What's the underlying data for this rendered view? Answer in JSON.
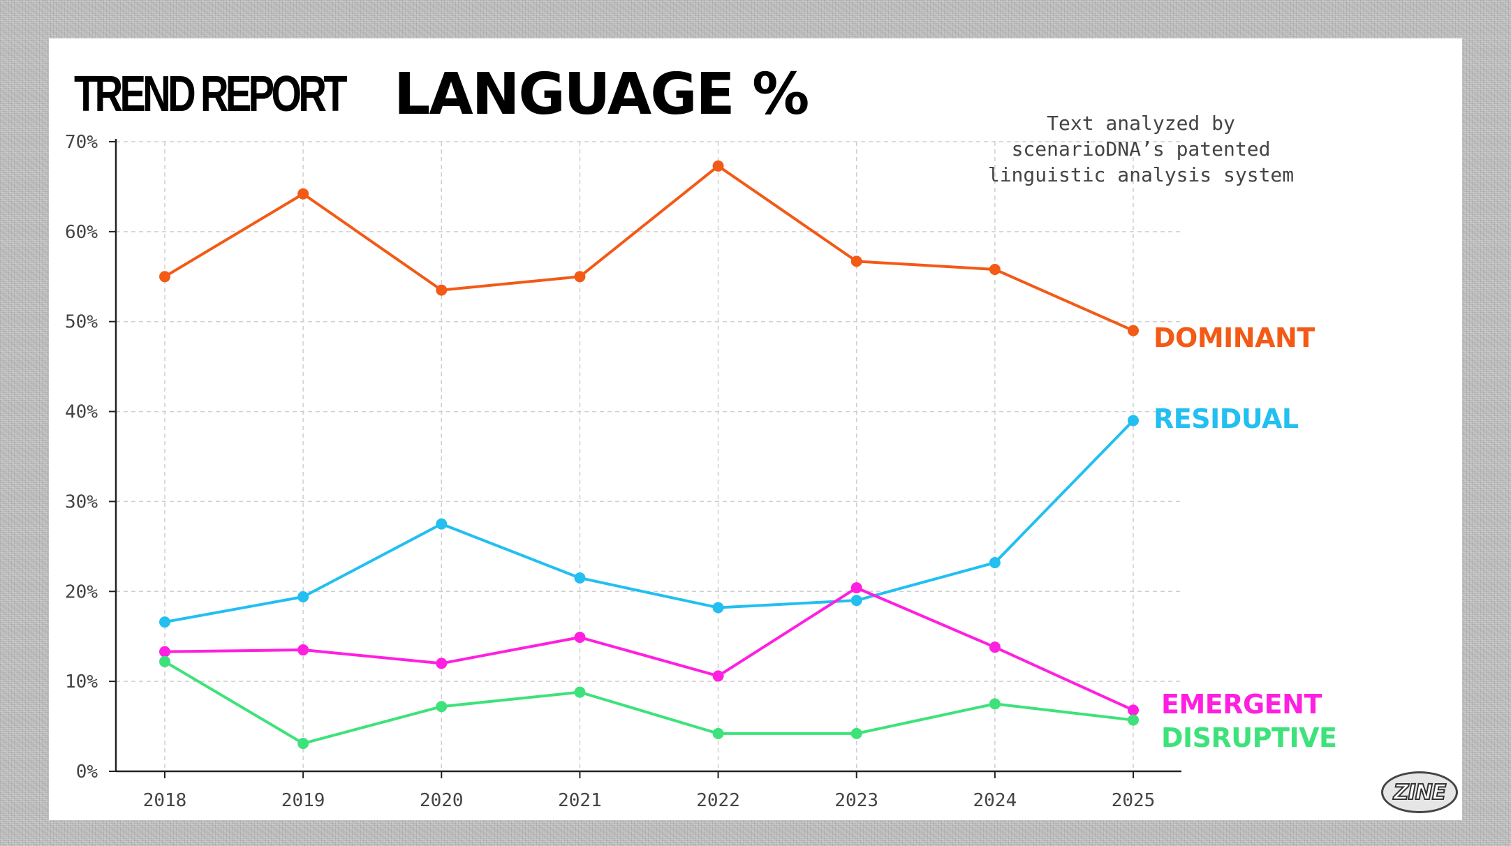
{
  "header": {
    "title_small": "TREND REPORT",
    "title_big": "LANGUAGE %"
  },
  "note": "Text analyzed by scenarioDNA’s patented linguistic analysis system",
  "logo_text": "ZINE",
  "chart_data": {
    "type": "line",
    "categories": [
      "2018",
      "2019",
      "2020",
      "2021",
      "2022",
      "2023",
      "2024",
      "2025"
    ],
    "ylim": [
      0,
      70
    ],
    "yticks": [
      0,
      10,
      20,
      30,
      40,
      50,
      60,
      70
    ],
    "ytick_labels": [
      "0%",
      "10%",
      "20%",
      "30%",
      "40%",
      "50%",
      "60%",
      "70%"
    ],
    "grid": true,
    "legend": "direct labels at line ends (right)",
    "series": [
      {
        "name": "DOMINANT",
        "color": "#f25a16",
        "values": [
          55.0,
          64.2,
          53.5,
          55.0,
          67.3,
          56.7,
          55.8,
          49.0
        ]
      },
      {
        "name": "RESIDUAL",
        "color": "#22bff0",
        "values": [
          16.6,
          19.4,
          27.5,
          21.5,
          18.2,
          19.0,
          23.2,
          39.0
        ]
      },
      {
        "name": "EMERGENT",
        "color": "#ff1fe0",
        "values": [
          13.3,
          13.5,
          12.0,
          14.9,
          10.6,
          20.4,
          13.8,
          6.8
        ]
      },
      {
        "name": "DISRUPTIVE",
        "color": "#3de27a",
        "values": [
          12.2,
          3.1,
          7.2,
          8.8,
          4.2,
          4.2,
          7.5,
          5.7
        ]
      }
    ]
  }
}
